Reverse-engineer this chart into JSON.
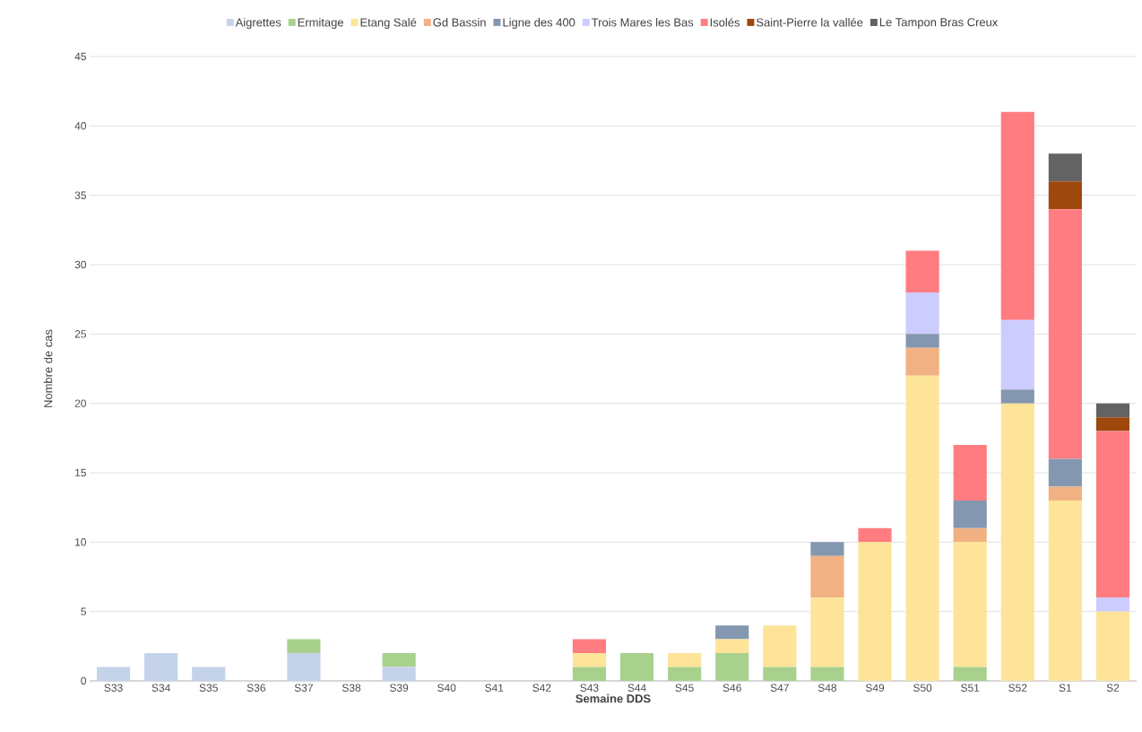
{
  "chart_data": {
    "type": "bar",
    "stacked": true,
    "xlabel": "Semaine DDS",
    "ylabel": "Nombre de cas",
    "categories": [
      "S33",
      "S34",
      "S35",
      "S36",
      "S37",
      "S38",
      "S39",
      "S40",
      "S41",
      "S42",
      "S43",
      "S44",
      "S45",
      "S46",
      "S47",
      "S48",
      "S49",
      "S50",
      "S51",
      "S52",
      "S1",
      "S2"
    ],
    "series": [
      {
        "name": "Aigrettes",
        "color": "#c5d3ea",
        "values": [
          1,
          2,
          1,
          0,
          2,
          0,
          1,
          0,
          0,
          0,
          0,
          0,
          0,
          0,
          0,
          0,
          0,
          0,
          0,
          0,
          0,
          0
        ]
      },
      {
        "name": "Ermitage",
        "color": "#a9d18e",
        "values": [
          0,
          0,
          0,
          0,
          1,
          0,
          1,
          0,
          0,
          0,
          1,
          2,
          1,
          2,
          1,
          1,
          0,
          0,
          1,
          0,
          0,
          0
        ]
      },
      {
        "name": "Etang Salé",
        "color": "#fde499",
        "values": [
          0,
          0,
          0,
          0,
          0,
          0,
          0,
          0,
          0,
          0,
          1,
          0,
          1,
          1,
          3,
          5,
          10,
          22,
          9,
          20,
          13,
          5
        ]
      },
      {
        "name": "Gd Bassin",
        "color": "#f1b183",
        "values": [
          0,
          0,
          0,
          0,
          0,
          0,
          0,
          0,
          0,
          0,
          0,
          0,
          0,
          0,
          0,
          3,
          0,
          2,
          1,
          0,
          1,
          0
        ]
      },
      {
        "name": "Ligne des 400",
        "color": "#8497b0",
        "values": [
          0,
          0,
          0,
          0,
          0,
          0,
          0,
          0,
          0,
          0,
          0,
          0,
          0,
          1,
          0,
          1,
          0,
          1,
          2,
          1,
          2,
          0
        ]
      },
      {
        "name": "Trois Mares les Bas",
        "color": "#ccccff",
        "values": [
          0,
          0,
          0,
          0,
          0,
          0,
          0,
          0,
          0,
          0,
          0,
          0,
          0,
          0,
          0,
          0,
          0,
          3,
          0,
          5,
          0,
          1
        ]
      },
      {
        "name": "Isolés",
        "color": "#ff7c80",
        "values": [
          0,
          0,
          0,
          0,
          0,
          0,
          0,
          0,
          0,
          0,
          1,
          0,
          0,
          0,
          0,
          0,
          1,
          3,
          4,
          15,
          18,
          12
        ]
      },
      {
        "name": "Saint-Pierre la vallée",
        "color": "#9e480e",
        "values": [
          0,
          0,
          0,
          0,
          0,
          0,
          0,
          0,
          0,
          0,
          0,
          0,
          0,
          0,
          0,
          0,
          0,
          0,
          0,
          0,
          2,
          1
        ]
      },
      {
        "name": "Le Tampon Bras Creux",
        "color": "#636363",
        "values": [
          0,
          0,
          0,
          0,
          0,
          0,
          0,
          0,
          0,
          0,
          0,
          0,
          0,
          0,
          0,
          0,
          0,
          0,
          0,
          0,
          2,
          1
        ]
      }
    ],
    "ylim": [
      0,
      45
    ],
    "yticks": [
      0,
      5,
      10,
      15,
      20,
      25,
      30,
      35,
      40,
      45
    ],
    "grid": "y",
    "legend": "top"
  }
}
